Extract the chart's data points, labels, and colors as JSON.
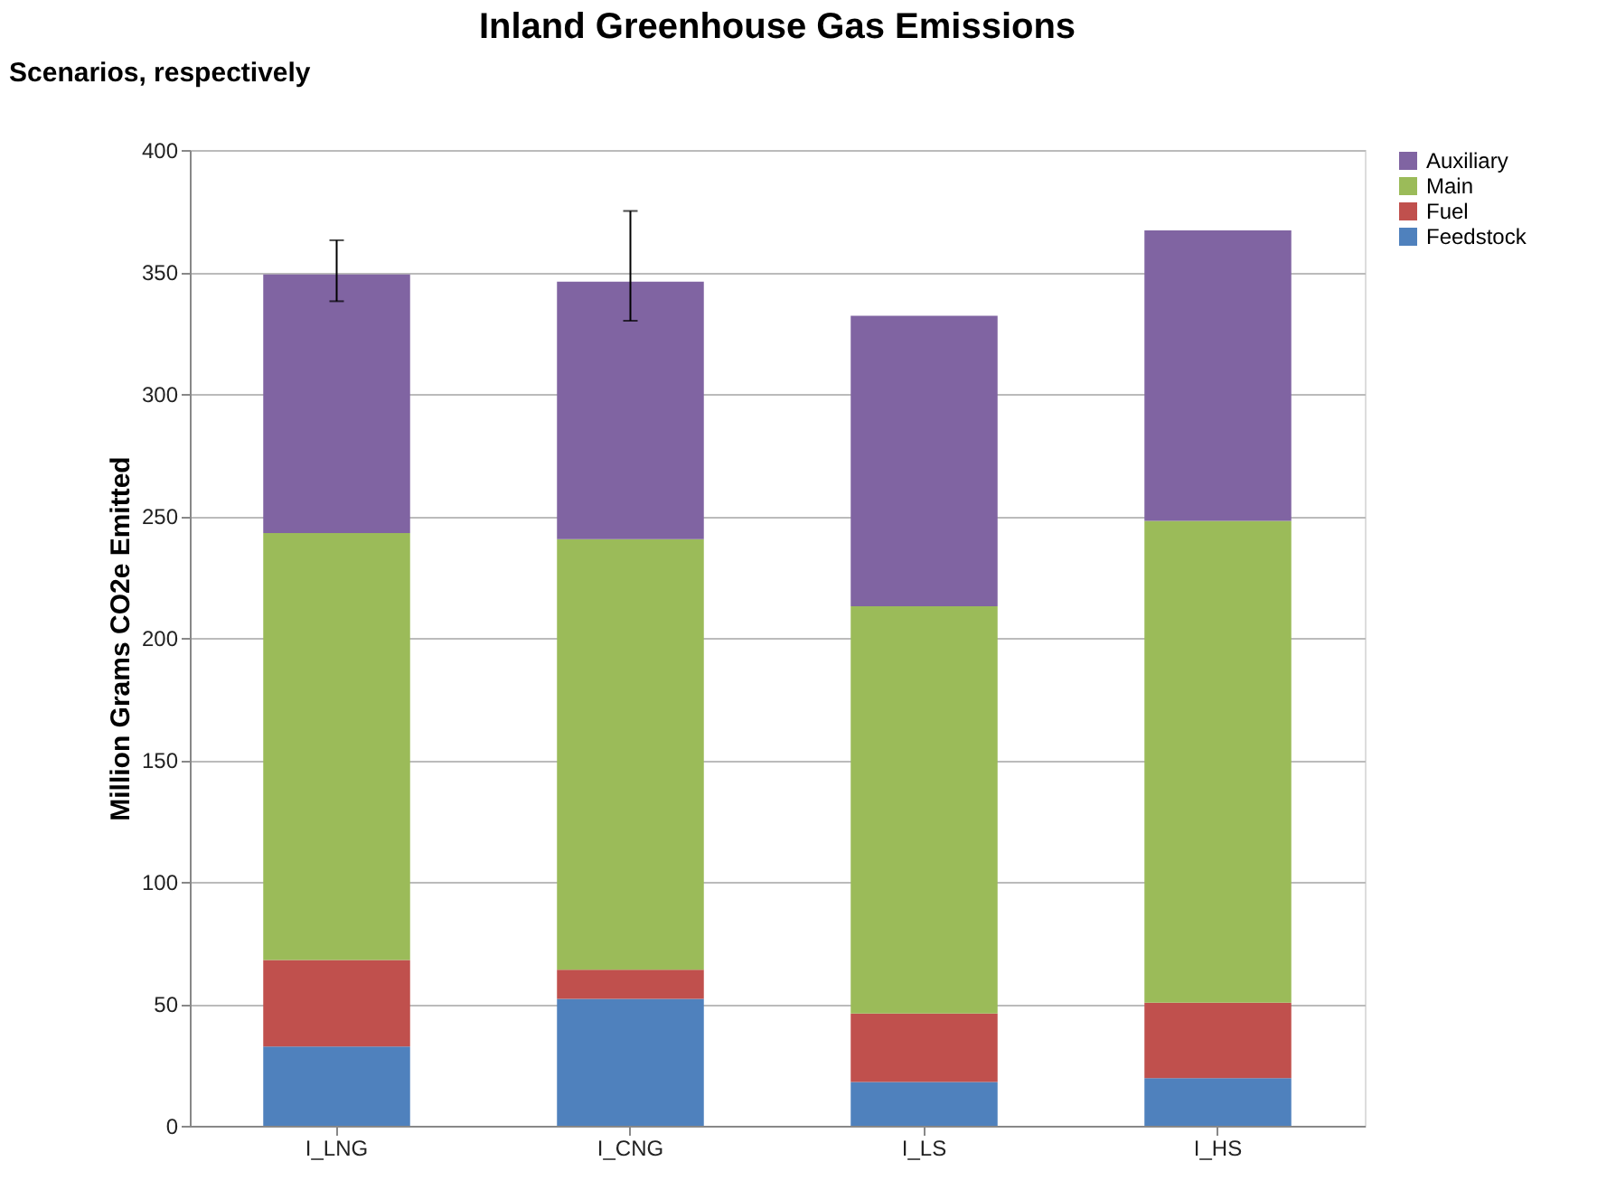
{
  "chart_data": {
    "type": "bar",
    "title": "Inland Greenhouse Gas Emissions",
    "ylabel": "Million Grams CO2e Emitted",
    "annotations": [
      "Scenarios, respectively"
    ],
    "categories": [
      "I_LNG",
      "I_CNG",
      "I_LS",
      "I_HS"
    ],
    "stacked": true,
    "series": [
      {
        "name": "Feedstock",
        "color": "#4f81bd",
        "values": [
          32.5,
          52,
          18,
          19.5
        ]
      },
      {
        "name": "Fuel",
        "color": "#c0504d",
        "values": [
          35.5,
          12,
          28,
          31
        ]
      },
      {
        "name": "Main",
        "color": "#9bbb59",
        "values": [
          175,
          176.5,
          167,
          197.5
        ]
      },
      {
        "name": "Auxiliary",
        "color": "#8064a2",
        "values": [
          106,
          105.5,
          119,
          119
        ],
        "errors": [
          [
            338,
            363
          ],
          [
            330,
            375
          ],
          null,
          null
        ]
      }
    ],
    "ylim": [
      0,
      400
    ],
    "yticks": [
      0,
      50,
      100,
      150,
      200,
      250,
      300,
      350,
      400
    ],
    "grid": "y",
    "legend": "right"
  }
}
